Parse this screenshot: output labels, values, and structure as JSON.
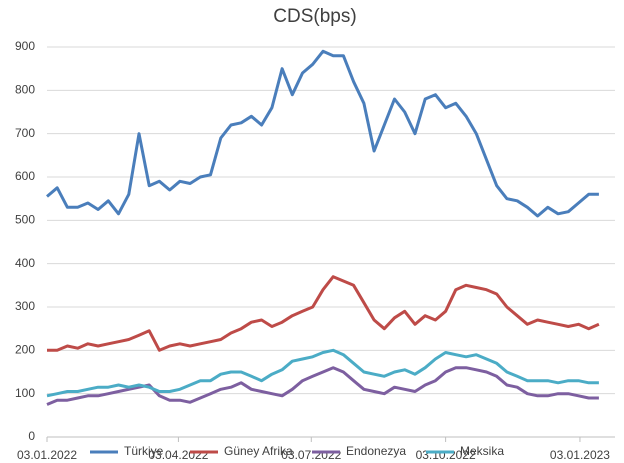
{
  "chart_data": {
    "type": "line",
    "title": "CDS(bps)",
    "x": [
      "03.01.2022",
      "10.01.2022",
      "17.01.2022",
      "24.01.2022",
      "31.01.2022",
      "07.02.2022",
      "14.02.2022",
      "21.02.2022",
      "28.02.2022",
      "07.03.2022",
      "14.03.2022",
      "21.03.2022",
      "28.03.2022",
      "04.04.2022",
      "11.04.2022",
      "18.04.2022",
      "25.04.2022",
      "02.05.2022",
      "09.05.2022",
      "16.05.2022",
      "23.05.2022",
      "30.05.2022",
      "06.06.2022",
      "13.06.2022",
      "20.06.2022",
      "27.06.2022",
      "04.07.2022",
      "11.07.2022",
      "18.07.2022",
      "25.07.2022",
      "01.08.2022",
      "08.08.2022",
      "15.08.2022",
      "22.08.2022",
      "29.08.2022",
      "05.09.2022",
      "12.09.2022",
      "19.09.2022",
      "26.09.2022",
      "03.10.2022",
      "10.10.2022",
      "17.10.2022",
      "24.10.2022",
      "31.10.2022",
      "07.11.2022",
      "14.11.2022",
      "21.11.2022",
      "28.11.2022",
      "05.12.2022",
      "12.12.2022",
      "19.12.2022",
      "26.12.2022",
      "02.01.2023",
      "09.01.2023",
      "16.01.2023"
    ],
    "series": [
      {
        "name": "Türkiye",
        "color": "#4a7ebb",
        "values": [
          555,
          575,
          530,
          530,
          540,
          525,
          545,
          515,
          560,
          700,
          580,
          590,
          570,
          590,
          585,
          600,
          605,
          690,
          720,
          725,
          740,
          720,
          760,
          850,
          790,
          840,
          860,
          890,
          880,
          880,
          820,
          770,
          660,
          720,
          780,
          750,
          700,
          780,
          790,
          760,
          770,
          740,
          700,
          640,
          580,
          550,
          545,
          530,
          510,
          530,
          515,
          520,
          540,
          560,
          560
        ]
      },
      {
        "name": "Güney Afrika",
        "color": "#be4b48",
        "values": [
          200,
          200,
          210,
          205,
          215,
          210,
          215,
          220,
          225,
          235,
          245,
          200,
          210,
          215,
          210,
          215,
          220,
          225,
          240,
          250,
          265,
          270,
          255,
          265,
          280,
          290,
          300,
          340,
          370,
          360,
          350,
          310,
          270,
          250,
          275,
          290,
          260,
          280,
          270,
          290,
          340,
          350,
          345,
          340,
          330,
          300,
          280,
          260,
          270,
          265,
          260,
          255,
          260,
          250,
          260
        ]
      },
      {
        "name": "Endonezya",
        "color": "#7d5fa0",
        "values": [
          75,
          85,
          85,
          90,
          95,
          95,
          100,
          105,
          110,
          115,
          120,
          95,
          85,
          85,
          80,
          90,
          100,
          110,
          115,
          125,
          110,
          105,
          100,
          95,
          110,
          130,
          140,
          150,
          160,
          150,
          130,
          110,
          105,
          100,
          115,
          110,
          105,
          120,
          130,
          150,
          160,
          160,
          155,
          150,
          140,
          120,
          115,
          100,
          95,
          95,
          100,
          100,
          95,
          90,
          90
        ]
      },
      {
        "name": "Meksika",
        "color": "#4bacc6",
        "values": [
          95,
          100,
          105,
          105,
          110,
          115,
          115,
          120,
          115,
          120,
          115,
          105,
          105,
          110,
          120,
          130,
          130,
          145,
          150,
          150,
          140,
          130,
          145,
          155,
          175,
          180,
          185,
          195,
          200,
          190,
          170,
          150,
          145,
          140,
          150,
          155,
          145,
          160,
          180,
          195,
          190,
          185,
          190,
          180,
          170,
          150,
          140,
          130,
          130,
          130,
          125,
          130,
          130,
          125,
          125
        ]
      }
    ],
    "xlim": [
      "03.01.2022",
      "27.01.2023"
    ],
    "xticks": [
      "03.01.2022",
      "03.04.2022",
      "03.07.2022",
      "03.10.2022",
      "03.01.2023"
    ],
    "ylim": [
      0,
      900
    ],
    "yticks": [
      0,
      100,
      200,
      300,
      400,
      500,
      600,
      700,
      800,
      900
    ],
    "grid": true,
    "legend": "bottom"
  }
}
